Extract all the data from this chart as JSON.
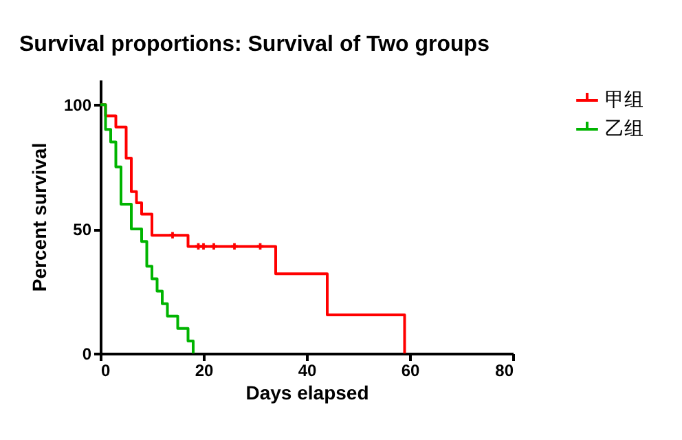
{
  "chart_data": {
    "type": "step",
    "title": "Survival proportions: Survival of Two groups",
    "xlabel": "Days elapsed",
    "ylabel": "Percent survival",
    "series": [
      {
        "name": "甲组",
        "color": "#ff0000",
        "x": [
          0,
          1,
          3,
          5,
          6,
          7,
          8,
          10,
          17,
          34,
          44,
          59
        ],
        "values": [
          100,
          95.5,
          91,
          78.5,
          65,
          60.5,
          56,
          47.5,
          43,
          32,
          15.5,
          0
        ]
      },
      {
        "name": "乙组",
        "color": "#00b400",
        "x": [
          0,
          1,
          2,
          3,
          4,
          6,
          8,
          9,
          10,
          11,
          12,
          13,
          15,
          17,
          18
        ],
        "values": [
          100,
          90,
          85,
          75,
          60,
          50,
          45,
          35,
          30,
          25,
          20,
          15,
          10,
          5,
          0
        ]
      },
      {
        "type": "scatter",
        "color": "#ff0000",
        "marker": "cross",
        "x": [
          14,
          19,
          20,
          22,
          26,
          31
        ],
        "values": [
          47.5,
          43,
          43,
          43,
          43,
          43
        ]
      }
    ],
    "xlim": [
      0,
      80
    ],
    "xticks": [
      0,
      20,
      40,
      60,
      80
    ],
    "ylim": [
      0,
      110
    ],
    "yticks": [
      0,
      50,
      100
    ],
    "grid": false,
    "legend": "top right"
  }
}
